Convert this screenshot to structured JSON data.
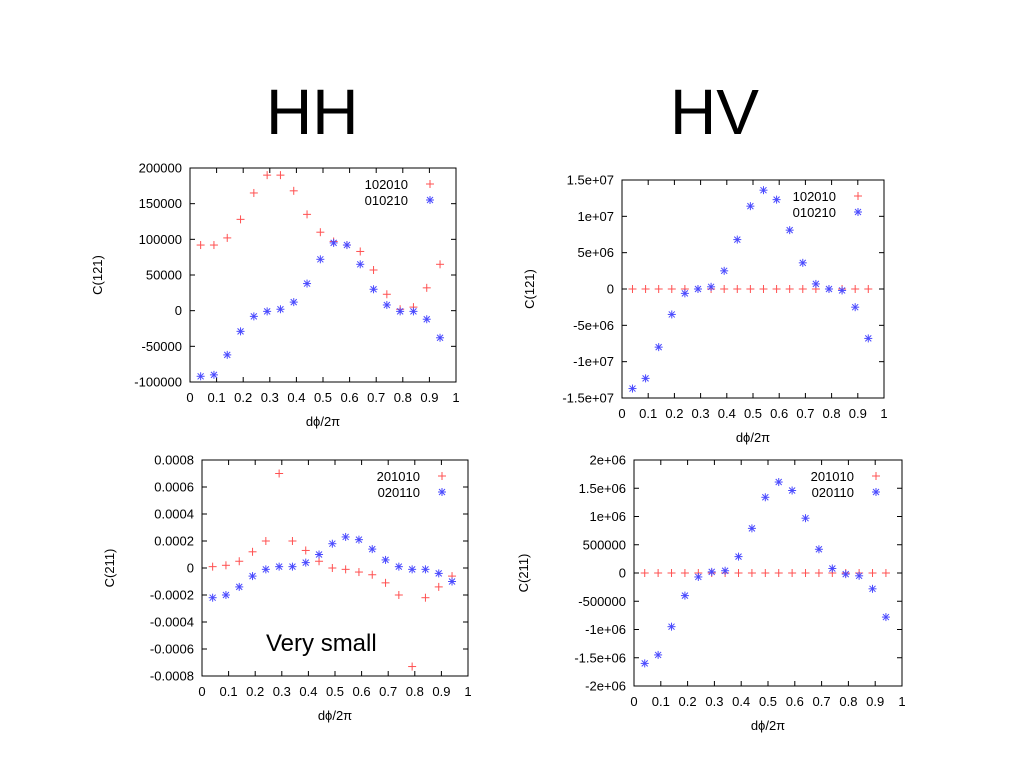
{
  "headings": {
    "left": "HH",
    "right": "HV"
  },
  "note": "Very small",
  "colors": {
    "series_plus": "#ff5050",
    "series_star": "#4a4aff"
  },
  "chart_data": [
    {
      "type": "scatter",
      "ylabel": "C(121)",
      "xlabel": "dϕ/2π",
      "xlim": [
        0,
        1
      ],
      "ylim": [
        -100000,
        200000
      ],
      "xticks": [
        0,
        0.1,
        0.2,
        0.3,
        0.4,
        0.5,
        0.6,
        0.7,
        0.8,
        0.9,
        1
      ],
      "xtick_labels": [
        "0",
        "0.1",
        "0.2",
        "0.3",
        "0.4",
        "0.5",
        "0.6",
        "0.7",
        "0.8",
        "0.9",
        "1"
      ],
      "yticks": [
        -100000,
        -50000,
        0,
        50000,
        100000,
        150000,
        200000
      ],
      "ytick_labels": [
        "-100000",
        "-50000",
        "0",
        "50000",
        "100000",
        "150000",
        "200000"
      ],
      "legend": "top-right",
      "series": [
        {
          "name": "102010",
          "marker": "plus",
          "x": [
            0.04,
            0.09,
            0.14,
            0.19,
            0.24,
            0.29,
            0.34,
            0.39,
            0.44,
            0.49,
            0.54,
            0.59,
            0.64,
            0.69,
            0.74,
            0.79,
            0.84,
            0.89,
            0.94
          ],
          "y": [
            92000,
            92000,
            102000,
            128000,
            165000,
            190000,
            190000,
            168000,
            135000,
            110000,
            97000,
            92000,
            83000,
            57000,
            23000,
            2000,
            5000,
            32000,
            65000
          ]
        },
        {
          "name": "010210",
          "marker": "star",
          "x": [
            0.04,
            0.09,
            0.14,
            0.19,
            0.24,
            0.29,
            0.34,
            0.39,
            0.44,
            0.49,
            0.54,
            0.59,
            0.64,
            0.69,
            0.74,
            0.79,
            0.84,
            0.89,
            0.94
          ],
          "y": [
            -92000,
            -90000,
            -62000,
            -29000,
            -8000,
            -1000,
            2000,
            12000,
            38000,
            72000,
            95000,
            92000,
            65000,
            30000,
            8000,
            -1000,
            -1000,
            -12000,
            -38000
          ]
        }
      ]
    },
    {
      "type": "scatter",
      "ylabel": "C(121)",
      "xlabel": "dϕ/2π",
      "xlim": [
        0,
        1
      ],
      "ylim": [
        -15000000,
        15000000
      ],
      "xticks": [
        0,
        0.1,
        0.2,
        0.3,
        0.4,
        0.5,
        0.6,
        0.7,
        0.8,
        0.9,
        1
      ],
      "xtick_labels": [
        "0",
        "0.1",
        "0.2",
        "0.3",
        "0.4",
        "0.5",
        "0.6",
        "0.7",
        "0.8",
        "0.9",
        "1"
      ],
      "yticks": [
        -15000000,
        -10000000,
        -5000000,
        0,
        5000000,
        10000000,
        15000000
      ],
      "ytick_labels": [
        "-1.5e+07",
        "-1e+07",
        "-5e+06",
        "0",
        "5e+06",
        "1e+07",
        "1.5e+07"
      ],
      "legend": "top-right",
      "series": [
        {
          "name": "102010",
          "marker": "plus",
          "x": [
            0.04,
            0.09,
            0.14,
            0.19,
            0.24,
            0.29,
            0.34,
            0.39,
            0.44,
            0.49,
            0.54,
            0.59,
            0.64,
            0.69,
            0.74,
            0.79,
            0.84,
            0.89,
            0.94
          ],
          "y": [
            0,
            0,
            0,
            0,
            0,
            0,
            0,
            0,
            0,
            0,
            0,
            0,
            0,
            0,
            0,
            0,
            0,
            0,
            0
          ]
        },
        {
          "name": "010210",
          "marker": "star",
          "x": [
            0.04,
            0.09,
            0.14,
            0.19,
            0.24,
            0.29,
            0.34,
            0.39,
            0.44,
            0.49,
            0.54,
            0.59,
            0.64,
            0.69,
            0.74,
            0.79,
            0.84,
            0.89,
            0.94
          ],
          "y": [
            -13700000,
            -12300000,
            -8000000,
            -3500000,
            -600000,
            0,
            300000,
            2500000,
            6800000,
            11400000,
            13600000,
            12300000,
            8100000,
            3600000,
            700000,
            0,
            -200000,
            -2500000,
            -6800000
          ]
        }
      ]
    },
    {
      "type": "scatter",
      "ylabel": "C(211)",
      "xlabel": "dϕ/2π",
      "xlim": [
        0,
        1
      ],
      "ylim": [
        -0.0008,
        0.0008
      ],
      "xticks": [
        0,
        0.1,
        0.2,
        0.3,
        0.4,
        0.5,
        0.6,
        0.7,
        0.8,
        0.9,
        1
      ],
      "xtick_labels": [
        "0",
        "0.1",
        "0.2",
        "0.3",
        "0.4",
        "0.5",
        "0.6",
        "0.7",
        "0.8",
        "0.9",
        "1"
      ],
      "yticks": [
        -0.0008,
        -0.0006,
        -0.0004,
        -0.0002,
        0,
        0.0002,
        0.0004,
        0.0006,
        0.0008
      ],
      "ytick_labels": [
        "-0.0008",
        "-0.0006",
        "-0.0004",
        "-0.0002",
        "0",
        "0.0002",
        "0.0004",
        "0.0006",
        "0.0008"
      ],
      "legend": "top-right",
      "series": [
        {
          "name": "201010",
          "marker": "plus",
          "x": [
            0.04,
            0.09,
            0.14,
            0.19,
            0.24,
            0.29,
            0.34,
            0.39,
            0.44,
            0.49,
            0.54,
            0.59,
            0.64,
            0.69,
            0.74,
            0.79,
            0.84,
            0.89,
            0.94
          ],
          "y": [
            1e-05,
            2e-05,
            5e-05,
            0.00012,
            0.0002,
            0.0007,
            0.0002,
            0.00013,
            5e-05,
            0.0,
            -1e-05,
            -3e-05,
            -5e-05,
            -0.00011,
            -0.0002,
            -0.00073,
            -0.00022,
            -0.00014,
            -6e-05
          ]
        },
        {
          "name": "020110",
          "marker": "star",
          "x": [
            0.04,
            0.09,
            0.14,
            0.19,
            0.24,
            0.29,
            0.34,
            0.39,
            0.44,
            0.49,
            0.54,
            0.59,
            0.64,
            0.69,
            0.74,
            0.79,
            0.84,
            0.89,
            0.94
          ],
          "y": [
            -0.00022,
            -0.0002,
            -0.00014,
            -6e-05,
            -1e-05,
            1e-05,
            1e-05,
            4e-05,
            0.0001,
            0.00018,
            0.00023,
            0.00021,
            0.00014,
            6e-05,
            1e-05,
            -1e-05,
            -1e-05,
            -4e-05,
            -0.0001
          ]
        }
      ]
    },
    {
      "type": "scatter",
      "ylabel": "C(211)",
      "xlabel": "dϕ/2π",
      "xlim": [
        0,
        1
      ],
      "ylim": [
        -2000000,
        2000000
      ],
      "xticks": [
        0,
        0.1,
        0.2,
        0.3,
        0.4,
        0.5,
        0.6,
        0.7,
        0.8,
        0.9,
        1
      ],
      "xtick_labels": [
        "0",
        "0.1",
        "0.2",
        "0.3",
        "0.4",
        "0.5",
        "0.6",
        "0.7",
        "0.8",
        "0.9",
        "1"
      ],
      "yticks": [
        -2000000,
        -1500000,
        -1000000,
        -500000,
        0,
        500000,
        1000000,
        1500000,
        2000000
      ],
      "ytick_labels": [
        "-2e+06",
        "-1.5e+06",
        "-1e+06",
        "-500000",
        "0",
        "500000",
        "1e+06",
        "1.5e+06",
        "2e+06"
      ],
      "legend": "top-right",
      "series": [
        {
          "name": "201010",
          "marker": "plus",
          "x": [
            0.04,
            0.09,
            0.14,
            0.19,
            0.24,
            0.29,
            0.34,
            0.39,
            0.44,
            0.49,
            0.54,
            0.59,
            0.64,
            0.69,
            0.74,
            0.79,
            0.84,
            0.89,
            0.94
          ],
          "y": [
            0,
            0,
            0,
            0,
            0,
            0,
            0,
            0,
            0,
            0,
            0,
            0,
            0,
            0,
            0,
            0,
            0,
            0,
            0
          ]
        },
        {
          "name": "020110",
          "marker": "star",
          "x": [
            0.04,
            0.09,
            0.14,
            0.19,
            0.24,
            0.29,
            0.34,
            0.39,
            0.44,
            0.49,
            0.54,
            0.59,
            0.64,
            0.69,
            0.74,
            0.79,
            0.84,
            0.89,
            0.94
          ],
          "y": [
            -1600000,
            -1450000,
            -950000,
            -400000,
            -70000,
            20000,
            40000,
            290000,
            790000,
            1340000,
            1610000,
            1460000,
            970000,
            420000,
            80000,
            -20000,
            -50000,
            -280000,
            -780000
          ]
        }
      ]
    }
  ]
}
